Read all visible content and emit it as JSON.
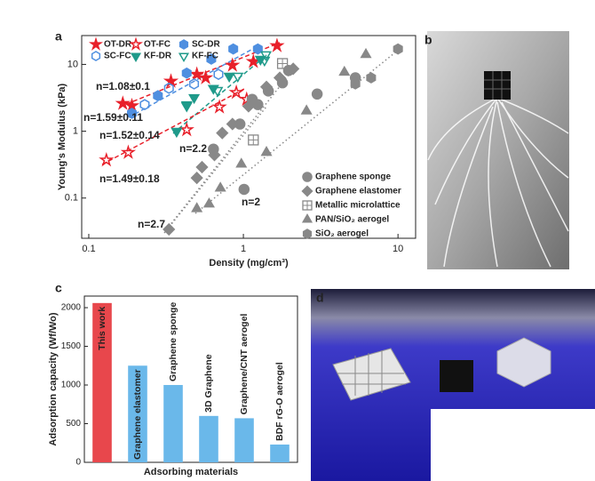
{
  "panel_labels": [
    "a",
    "b",
    "c",
    "d"
  ],
  "chart_data": [
    {
      "type": "scatter",
      "x_label": "Density (mg/cm³)",
      "y_label": "Young's Modulus (kPa)",
      "log_x": true,
      "log_y": true,
      "xlim": [
        0.09,
        13
      ],
      "ylim": [
        0.025,
        27
      ],
      "xticks": [
        0.1,
        1,
        10
      ],
      "yticks": [
        0.1,
        1,
        10
      ],
      "series": [
        {
          "name": "OT-DR",
          "color": "#e8202a",
          "marker": "star",
          "filled": true,
          "x": [
            0.166,
            0.19,
            0.34,
            0.5,
            0.57,
            0.85,
            1.16,
            1.65
          ],
          "values": [
            2.6,
            2.4,
            5.6,
            7.1,
            6.3,
            9.7,
            11,
            19
          ]
        },
        {
          "name": "OT-FC",
          "color": "#e8202a",
          "marker": "star",
          "filled": false,
          "x": [
            0.13,
            0.18,
            0.43,
            0.7,
            0.9,
            1.05
          ],
          "values": [
            0.37,
            0.48,
            1.05,
            2.3,
            3.8,
            3.0
          ]
        },
        {
          "name": "SC-DR",
          "color": "#4f8fe0",
          "marker": "hexagon",
          "filled": true,
          "x": [
            0.19,
            0.28,
            0.43,
            0.62,
            0.86,
            1.24
          ],
          "values": [
            1.85,
            3.4,
            7.4,
            12,
            17,
            17
          ]
        },
        {
          "name": "SC-FC",
          "color": "#4f8fe0",
          "marker": "hexagon",
          "filled": false,
          "x": [
            0.23,
            0.33,
            0.48,
            0.69
          ],
          "values": [
            2.5,
            4.4,
            5.1,
            7.1
          ]
        },
        {
          "name": "KF-DR",
          "color": "#1f9a8a",
          "marker": "tri-down",
          "filled": true,
          "x": [
            0.37,
            0.43,
            0.48,
            0.64,
            0.81,
            1.29
          ],
          "values": [
            1.0,
            2.5,
            3.2,
            4.4,
            6.7,
            12
          ]
        },
        {
          "name": "KF-FC",
          "color": "#1f9a8a",
          "marker": "tri-down",
          "filled": false,
          "x": [
            0.43,
            0.68,
            0.92,
            1.37,
            1.4
          ],
          "values": [
            2.4,
            4.1,
            6.7,
            11.6,
            14
          ]
        },
        {
          "name": "Graphene sponge",
          "color": "#888888",
          "marker": "circle",
          "filled": true,
          "x": [
            0.64,
            0.95,
            1.01,
            1.14,
            1.24,
            1.45,
            1.79,
            1.96,
            3.0,
            5.3
          ],
          "values": [
            0.54,
            1.28,
            0.135,
            3.0,
            2.5,
            4.0,
            5.3,
            8.1,
            3.6,
            6.3
          ]
        },
        {
          "name": "Graphene elastomer",
          "color": "#888888",
          "marker": "diamond",
          "filled": true,
          "x": [
            0.33,
            0.5,
            0.54,
            0.65,
            0.73,
            0.85,
            1.08,
            1.41,
            1.72,
            2.1
          ],
          "values": [
            0.034,
            0.2,
            0.29,
            0.44,
            0.94,
            1.28,
            2.36,
            4.6,
            6.3,
            8.6
          ]
        },
        {
          "name": "Metallic microlattice",
          "color": "#888888",
          "marker": "square-plus",
          "filled": false,
          "x": [
            1.16,
            1.79
          ],
          "values": [
            0.74,
            10.3
          ]
        },
        {
          "name": "PAN/SiO₂ aerogel",
          "color": "#888888",
          "marker": "triangle",
          "filled": true,
          "x": [
            0.5,
            0.6,
            0.71,
            0.97,
            1.41,
            2.56,
            4.5,
            6.2
          ],
          "values": [
            0.069,
            0.081,
            0.14,
            0.32,
            0.48,
            2.0,
            7.6,
            14
          ]
        },
        {
          "name": "SiO₂ aerogel",
          "color": "#888888",
          "marker": "hexagon",
          "filled": true,
          "x": [
            5.3,
            6.7,
            10
          ],
          "values": [
            5.1,
            6.3,
            17
          ]
        }
      ],
      "annotations": [
        {
          "text": "n=1.08±0.1",
          "color": "#e8202a"
        },
        {
          "text": "n=1.59±0.11",
          "color": "#4f8fe0"
        },
        {
          "text": "n=1.52±0.14",
          "color": "#1f9a8a"
        },
        {
          "text": "n=1.49±0.18",
          "color": "#e8202a"
        },
        {
          "text": "n=2.2",
          "color": "#888888"
        },
        {
          "text": "n=2.7",
          "color": "#888888"
        },
        {
          "text": "n=2",
          "color": "#888888"
        }
      ]
    },
    {
      "type": "bar",
      "x_label": "Adsorbing materials",
      "y_label": "Adsorption capacity (Wf/Wo)",
      "categories": [
        "This work",
        "Graphene elastomer",
        "Graphene sponge",
        "3D Graphene",
        "Graphene/CNT aerogel",
        "BDF rG-O aerogel"
      ],
      "values": [
        2060,
        1250,
        1000,
        600,
        570,
        230
      ],
      "colors": [
        "#e8474c",
        "#6ab8ea",
        "#6ab8ea",
        "#6ab8ea",
        "#6ab8ea",
        "#6ab8ea"
      ],
      "ylim": [
        0,
        2150
      ],
      "yticks": [
        0,
        500,
        1000,
        1500,
        2000
      ]
    }
  ]
}
